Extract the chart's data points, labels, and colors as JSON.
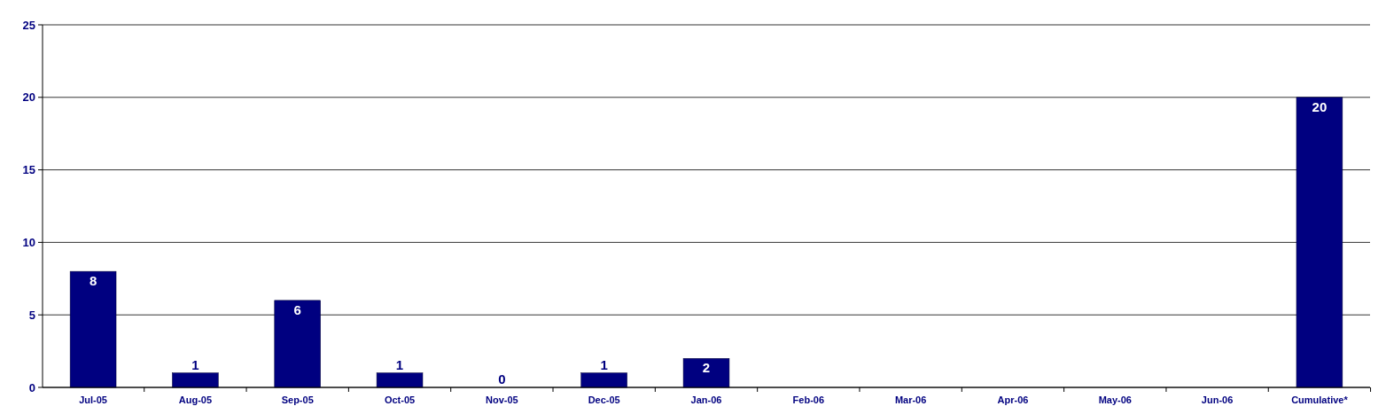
{
  "chart_data": {
    "type": "bar",
    "categories": [
      "Jul-05",
      "Aug-05",
      "Sep-05",
      "Oct-05",
      "Nov-05",
      "Dec-05",
      "Jan-06",
      "Feb-06",
      "Mar-06",
      "Apr-06",
      "May-06",
      "Jun-06",
      "Cumulative*"
    ],
    "values": [
      8,
      1,
      6,
      1,
      0,
      1,
      2,
      null,
      null,
      null,
      null,
      null,
      20
    ],
    "color": "#000080",
    "ylim": [
      0,
      25
    ],
    "yticks": [
      0,
      5,
      10,
      15,
      20,
      25
    ],
    "grid": "y",
    "data_labels": true
  }
}
